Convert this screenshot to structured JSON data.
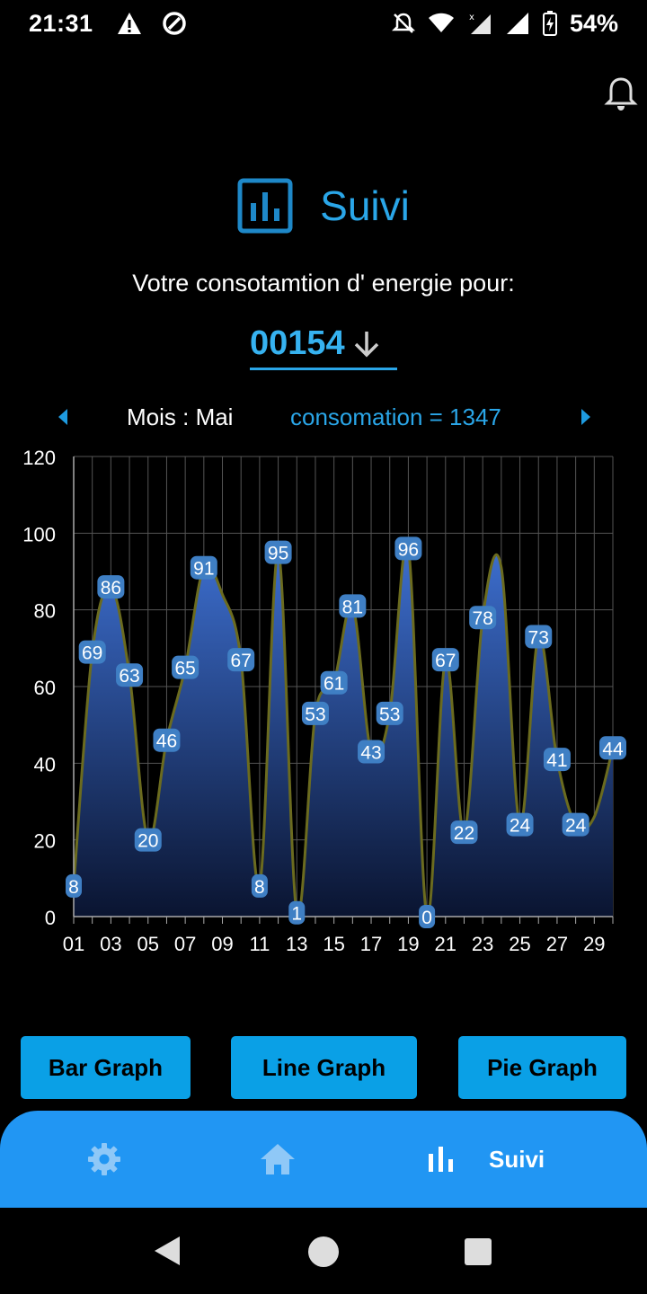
{
  "status_bar": {
    "time": "21:31",
    "battery": "54%"
  },
  "header": {
    "title": "Suivi",
    "subtitle": "Votre consotamtion d' energie pour:"
  },
  "meter": {
    "value": "00154"
  },
  "month_row": {
    "month": "Mois : Mai",
    "consumption": "consomation = 1347"
  },
  "buttons": {
    "bar": "Bar Graph",
    "line": "Line  Graph",
    "pie": "Pie Graph"
  },
  "bottom_nav": {
    "suivi_label": "Suivi"
  },
  "colors": {
    "accent": "#2aa6e8",
    "nav": "#2196f3",
    "button": "#0aa0e6",
    "line": "#6b6b1f",
    "label_bg": "#3f7fc4"
  },
  "chart_data": {
    "type": "area",
    "x": [
      1,
      2,
      3,
      4,
      5,
      6,
      7,
      8,
      9,
      10,
      11,
      12,
      13,
      14,
      15,
      16,
      17,
      18,
      19,
      20,
      21,
      22,
      23,
      24,
      25,
      26,
      27,
      28,
      29,
      30
    ],
    "x_tick_labels": [
      "01",
      "03",
      "05",
      "07",
      "09",
      "11",
      "13",
      "15",
      "17",
      "19",
      "21",
      "23",
      "25",
      "27",
      "29"
    ],
    "series": [
      {
        "values": [
          8,
          69,
          86,
          63,
          20,
          46,
          65,
          91,
          84,
          67,
          8,
          95,
          1,
          53,
          61,
          81,
          43,
          53,
          96,
          0,
          67,
          22,
          78,
          91,
          24,
          73,
          41,
          24,
          26,
          44
        ]
      }
    ],
    "data_labels": [
      {
        "x": 1,
        "value": "8"
      },
      {
        "x": 2,
        "value": "69"
      },
      {
        "x": 3,
        "value": "86"
      },
      {
        "x": 4,
        "value": "63"
      },
      {
        "x": 5,
        "value": "20"
      },
      {
        "x": 6,
        "value": "46"
      },
      {
        "x": 7,
        "value": "65"
      },
      {
        "x": 8,
        "value": "91"
      },
      {
        "x": 10,
        "value": "67"
      },
      {
        "x": 11,
        "value": "8"
      },
      {
        "x": 12,
        "value": "95"
      },
      {
        "x": 13,
        "value": "1"
      },
      {
        "x": 14,
        "value": "53"
      },
      {
        "x": 15,
        "value": "61"
      },
      {
        "x": 16,
        "value": "81"
      },
      {
        "x": 17,
        "value": "43"
      },
      {
        "x": 18,
        "value": "53"
      },
      {
        "x": 19,
        "value": "96"
      },
      {
        "x": 20,
        "value": "0"
      },
      {
        "x": 21,
        "value": "67"
      },
      {
        "x": 22,
        "value": "22"
      },
      {
        "x": 23,
        "value": "78"
      },
      {
        "x": 25,
        "value": "24"
      },
      {
        "x": 26,
        "value": "73"
      },
      {
        "x": 27,
        "value": "41"
      },
      {
        "x": 28,
        "value": "24"
      },
      {
        "x": 30,
        "value": "44"
      }
    ],
    "xlim": [
      1,
      30
    ],
    "ylim": [
      0,
      120
    ],
    "y_ticks": [
      0,
      20,
      40,
      60,
      80,
      100,
      120
    ],
    "grid": true,
    "title": "",
    "xlabel": "",
    "ylabel": ""
  }
}
